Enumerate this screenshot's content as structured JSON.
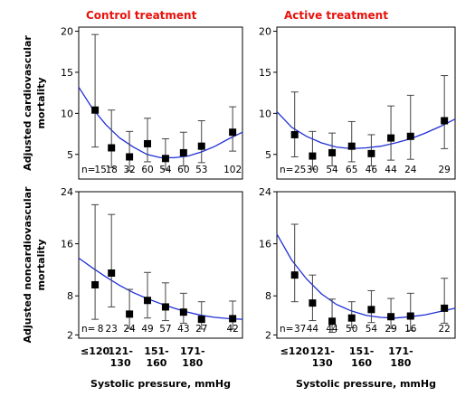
{
  "colors": {
    "title": "#e8120c",
    "curve": "#1f2fd6",
    "frame": "#000000",
    "point": "#000000"
  },
  "x_categories": [
    {
      "line1": "≤120",
      "line2": ""
    },
    {
      "line1": "121-",
      "line2": "130"
    },
    {
      "line1": "151-",
      "line2": "160"
    },
    {
      "line1": "171-",
      "line2": "180"
    }
  ],
  "chart_data": [
    {
      "type": "scatter",
      "title": "Control treatment",
      "ylabel": "Adjusted cardiovascular mortality",
      "xlabel": "",
      "ylim": [
        2,
        20.5
      ],
      "yticks": [
        5,
        10,
        15,
        20
      ],
      "n_prefix": "n=",
      "points": [
        {
          "n": "15",
          "y": 10.4,
          "lo": 5.9,
          "hi": 19.6
        },
        {
          "n": "18",
          "y": 5.8,
          "lo": 3.4,
          "hi": 10.4
        },
        {
          "n": "32",
          "y": 4.7,
          "lo": 3.0,
          "hi": 7.8
        },
        {
          "n": "60",
          "y": 6.3,
          "lo": 4.1,
          "hi": 9.4
        },
        {
          "n": "54",
          "y": 4.5,
          "lo": 3.2,
          "hi": 6.9
        },
        {
          "n": "60",
          "y": 5.2,
          "lo": 3.6,
          "hi": 7.7
        },
        {
          "n": "53",
          "y": 6.0,
          "lo": 4.0,
          "hi": 9.1
        },
        {
          "n": "102",
          "y": 7.7,
          "lo": 5.4,
          "hi": 10.8
        }
      ],
      "curve": [
        13.2,
        10.6,
        8.6,
        7.0,
        5.9,
        5.0,
        4.6,
        4.6,
        4.8,
        5.3,
        6.0,
        6.9,
        7.7
      ]
    },
    {
      "type": "scatter",
      "title": "Active treatment",
      "ylabel": "",
      "xlabel": "",
      "ylim": [
        2,
        20.5
      ],
      "yticks": [
        5,
        10,
        15,
        20
      ],
      "n_prefix": "n=",
      "points": [
        {
          "n": "25",
          "y": 7.4,
          "lo": 4.7,
          "hi": 12.6
        },
        {
          "n": "30",
          "y": 4.8,
          "lo": 3.2,
          "hi": 7.8
        },
        {
          "n": "54",
          "y": 5.2,
          "lo": 3.6,
          "hi": 7.6
        },
        {
          "n": "65",
          "y": 6.0,
          "lo": 4.1,
          "hi": 9.0
        },
        {
          "n": "46",
          "y": 5.1,
          "lo": 3.6,
          "hi": 7.4
        },
        {
          "n": "44",
          "y": 7.0,
          "lo": 4.3,
          "hi": 10.9
        },
        {
          "n": "24",
          "y": 7.2,
          "lo": 4.4,
          "hi": 12.2
        },
        {
          "n": "29",
          "y": 9.1,
          "lo": 5.7,
          "hi": 14.6
        }
      ],
      "curve": [
        10.2,
        8.3,
        7.2,
        6.4,
        5.9,
        5.7,
        5.8,
        6.0,
        6.4,
        6.9,
        7.6,
        8.4,
        9.3
      ]
    },
    {
      "type": "scatter",
      "title": "",
      "ylabel": "Adjusted noncardiovascular mortality",
      "xlabel": "Systolic pressure, mmHg",
      "ylim": [
        1.5,
        24
      ],
      "yticks": [
        2,
        8,
        16,
        24
      ],
      "n_prefix": "n=",
      "points": [
        {
          "n": "8",
          "y": 9.7,
          "lo": 4.4,
          "hi": 22.0
        },
        {
          "n": "23",
          "y": 11.5,
          "lo": 6.3,
          "hi": 20.5
        },
        {
          "n": "24",
          "y": 5.2,
          "lo": 3.0,
          "hi": 9.0
        },
        {
          "n": "49",
          "y": 7.3,
          "lo": 4.6,
          "hi": 11.6
        },
        {
          "n": "57",
          "y": 6.3,
          "lo": 4.2,
          "hi": 10.0
        },
        {
          "n": "43",
          "y": 5.5,
          "lo": 3.8,
          "hi": 8.4
        },
        {
          "n": "27",
          "y": 4.4,
          "lo": 2.9,
          "hi": 7.1
        },
        {
          "n": "42",
          "y": 4.5,
          "lo": 2.9,
          "hi": 7.2
        }
      ],
      "curve": [
        13.8,
        12.3,
        10.9,
        9.6,
        8.5,
        7.6,
        6.8,
        6.1,
        5.5,
        5.0,
        4.7,
        4.5,
        4.4
      ]
    },
    {
      "type": "scatter",
      "title": "",
      "ylabel": "",
      "xlabel": "Systolic pressure, mmHg",
      "ylim": [
        1.5,
        24
      ],
      "yticks": [
        2,
        8,
        16,
        24
      ],
      "n_prefix": "n=",
      "points": [
        {
          "n": "37",
          "y": 11.2,
          "lo": 7.1,
          "hi": 19.0
        },
        {
          "n": "44",
          "y": 6.9,
          "lo": 4.2,
          "hi": 11.2
        },
        {
          "n": "44",
          "y": 4.1,
          "lo": 2.4,
          "hi": 7.5
        },
        {
          "n": "50",
          "y": 4.6,
          "lo": 3.1,
          "hi": 7.1
        },
        {
          "n": "54",
          "y": 5.9,
          "lo": 3.9,
          "hi": 8.8
        },
        {
          "n": "29",
          "y": 4.8,
          "lo": 3.0,
          "hi": 7.6
        },
        {
          "n": "16",
          "y": 4.9,
          "lo": 2.7,
          "hi": 8.4
        },
        {
          "n": "22",
          "y": 6.1,
          "lo": 3.8,
          "hi": 10.7
        }
      ],
      "curve": [
        17.5,
        13.5,
        10.6,
        8.3,
        6.7,
        5.7,
        5.0,
        4.7,
        4.6,
        4.8,
        5.1,
        5.6,
        6.1
      ]
    }
  ]
}
